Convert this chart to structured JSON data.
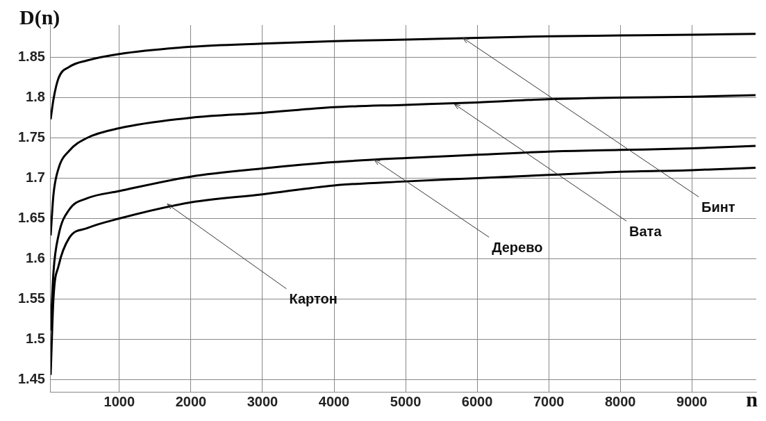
{
  "chart_data": {
    "type": "line",
    "xlabel": "n",
    "ylabel": "D(n)",
    "x": [
      40,
      80,
      150,
      300,
      550,
      1000,
      2000,
      3000,
      4000,
      5000,
      6000,
      7000,
      8000,
      9000,
      9890
    ],
    "series": [
      {
        "color": "#000000",
        "values": [
          1.773,
          1.798,
          1.824,
          1.838,
          1.846,
          1.854,
          1.863,
          1.867,
          1.87,
          1.872,
          1.874,
          1.876,
          1.877,
          1.878,
          1.879
        ]
      },
      {
        "color": "#000000",
        "values": [
          1.629,
          1.68,
          1.712,
          1.734,
          1.75,
          1.762,
          1.775,
          1.781,
          1.788,
          1.791,
          1.794,
          1.798,
          1.8,
          1.801,
          1.803
        ]
      },
      {
        "color": "#000000",
        "values": [
          1.511,
          1.584,
          1.629,
          1.661,
          1.675,
          1.684,
          1.702,
          1.712,
          1.72,
          1.725,
          1.729,
          1.733,
          1.735,
          1.737,
          1.74
        ]
      },
      {
        "color": "#000000",
        "values": [
          1.456,
          1.552,
          1.591,
          1.626,
          1.638,
          1.65,
          1.67,
          1.68,
          1.691,
          1.696,
          1.7,
          1.704,
          1.708,
          1.71,
          1.713
        ]
      }
    ],
    "annotations": [
      {
        "text": "Бинт",
        "x": 5800,
        "y": 1.874
      },
      {
        "text": "Вата",
        "x": 5680,
        "y": 1.792
      },
      {
        "text": "Дерево",
        "x": 4560,
        "y": 1.723
      },
      {
        "text": "Картон",
        "x": 1670,
        "y": 1.668
      }
    ],
    "xlim": [
      40,
      9900
    ],
    "ylim": [
      1.435,
      1.89
    ],
    "xticks": [
      1000,
      2000,
      3000,
      4000,
      5000,
      6000,
      7000,
      8000,
      9000
    ],
    "yticks": [
      1.45,
      1.5,
      1.55,
      1.6,
      1.65,
      1.7,
      1.75,
      1.8,
      1.85
    ],
    "grid": true,
    "legend": false,
    "marker": "none",
    "line_style": "solid"
  }
}
